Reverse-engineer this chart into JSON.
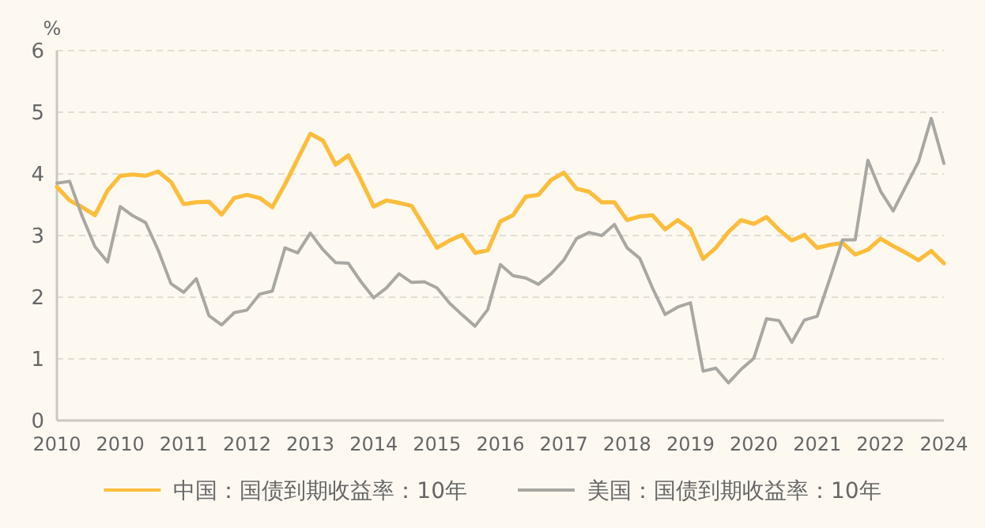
{
  "chart_data": {
    "type": "line",
    "ylabel": "%",
    "ylim": [
      0,
      6
    ],
    "yticks": [
      0,
      1,
      2,
      3,
      4,
      5,
      6
    ],
    "categories": [
      "2010",
      null,
      null,
      null,
      null,
      "2010",
      null,
      null,
      null,
      null,
      "2011",
      null,
      null,
      null,
      null,
      "2012",
      null,
      null,
      null,
      null,
      "2013",
      null,
      null,
      null,
      null,
      "2014",
      null,
      null,
      null,
      null,
      "2015",
      null,
      null,
      null,
      null,
      "2016",
      null,
      null,
      null,
      null,
      "2017",
      null,
      null,
      null,
      null,
      "2018",
      null,
      null,
      null,
      null,
      "2019",
      null,
      null,
      null,
      null,
      "2020",
      null,
      null,
      null,
      null,
      "2021",
      null,
      null,
      null,
      null,
      "2022",
      null,
      null,
      null,
      null,
      "2024"
    ],
    "grid": "y",
    "legend": "bottom",
    "line_style": "solid",
    "marker": "none",
    "series": [
      {
        "name": "中国：国债到期收益率：10年",
        "color": "#fdbd3c",
        "values": [
          3.79,
          3.57,
          3.46,
          3.33,
          3.73,
          3.97,
          3.99,
          3.97,
          4.04,
          3.87,
          3.51,
          3.54,
          3.55,
          3.34,
          3.61,
          3.66,
          3.61,
          3.46,
          3.83,
          4.24,
          4.65,
          4.54,
          4.15,
          4.3,
          3.9,
          3.47,
          3.57,
          3.53,
          3.48,
          3.14,
          2.8,
          2.92,
          3.01,
          2.72,
          2.76,
          3.23,
          3.33,
          3.63,
          3.66,
          3.9,
          4.02,
          3.76,
          3.71,
          3.54,
          3.54,
          3.25,
          3.31,
          3.33,
          3.1,
          3.25,
          3.1,
          2.62,
          2.8,
          3.06,
          3.25,
          3.19,
          3.3,
          3.09,
          2.92,
          3.01,
          2.8,
          2.85,
          2.88,
          2.69,
          2.77,
          2.95,
          2.83,
          2.72,
          2.6,
          2.75,
          2.55
        ]
      },
      {
        "name": "美国：国债到期收益率：10年",
        "color": "#a9a7a2",
        "values": [
          3.85,
          3.88,
          3.31,
          2.82,
          2.57,
          3.47,
          3.32,
          3.21,
          2.76,
          2.22,
          2.08,
          2.3,
          1.7,
          1.55,
          1.75,
          1.79,
          2.05,
          2.1,
          2.8,
          2.72,
          3.04,
          2.77,
          2.56,
          2.55,
          2.25,
          1.99,
          2.15,
          2.38,
          2.24,
          2.25,
          2.15,
          1.9,
          1.71,
          1.53,
          1.8,
          2.53,
          2.35,
          2.31,
          2.21,
          2.38,
          2.6,
          2.95,
          3.05,
          3.0,
          3.18,
          2.8,
          2.63,
          2.15,
          1.72,
          1.84,
          1.91,
          0.8,
          0.85,
          0.61,
          0.83,
          1.01,
          1.65,
          1.62,
          1.27,
          1.63,
          1.69,
          2.3,
          2.93,
          2.93,
          4.22,
          3.72,
          3.4,
          3.8,
          4.2,
          4.9,
          4.17
        ]
      }
    ]
  }
}
